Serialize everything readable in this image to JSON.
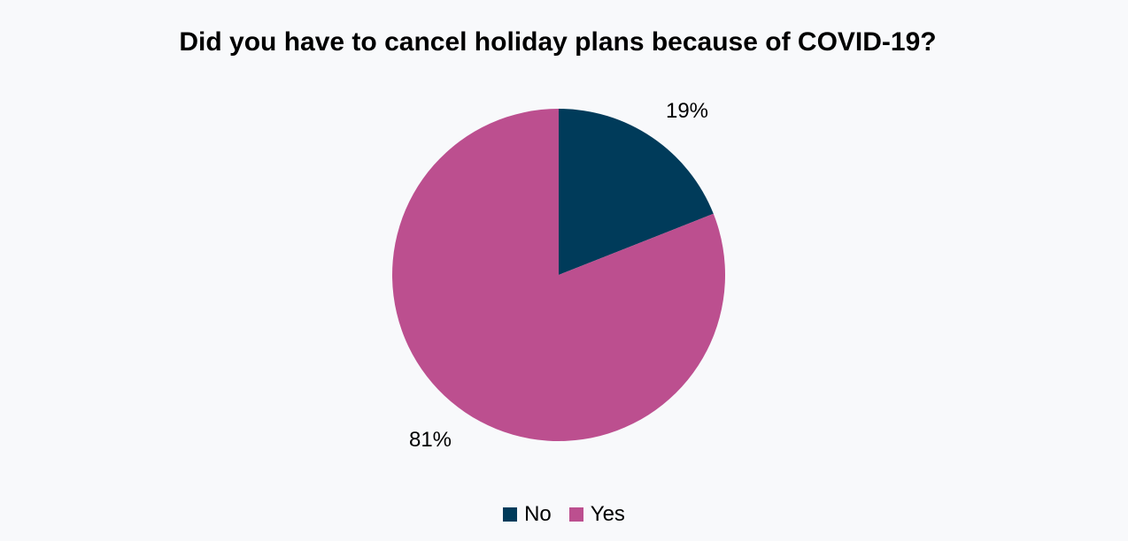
{
  "chart_data": {
    "type": "pie",
    "title": "Did you have to cancel holiday plans because of COVID-19?",
    "slices": [
      {
        "label": "No",
        "value": 19,
        "value_label": "19%",
        "color": "#003b5a"
      },
      {
        "label": "Yes",
        "value": 81,
        "value_label": "81%",
        "color": "#bc4f8f"
      }
    ],
    "legend_position": "bottom"
  }
}
